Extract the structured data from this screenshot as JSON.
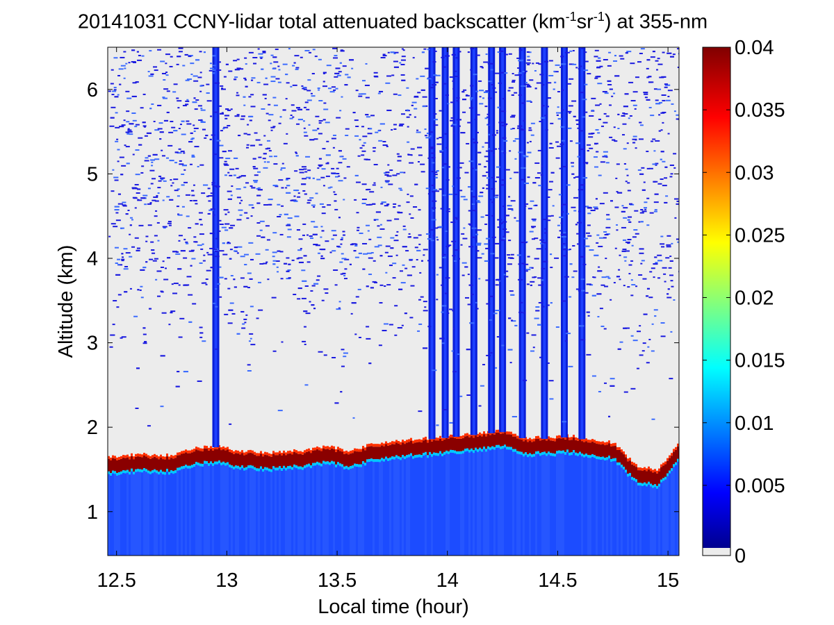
{
  "chart_data": {
    "type": "heatmap",
    "title": {
      "date": "20141031",
      "text_before_units": "CCNY-lidar total attenuated backscatter (km",
      "exp1": "-1",
      "mid": "sr",
      "exp2": "-1",
      "text_after_units": ") at 355-nm"
    },
    "xlabel": "Local time (hour)",
    "ylabel": "Altitude (km)",
    "xlim": [
      12.46,
      15.05
    ],
    "ylim": [
      0.48,
      6.5
    ],
    "xticks": [
      12.5,
      13,
      13.5,
      14,
      14.5,
      15
    ],
    "xtick_labels": [
      "12.5",
      "13",
      "13.5",
      "14",
      "14.5",
      "15"
    ],
    "yticks": [
      1,
      2,
      3,
      4,
      5,
      6
    ],
    "ytick_labels": [
      "1",
      "2",
      "3",
      "4",
      "5",
      "6"
    ],
    "colorbar": {
      "range": [
        0,
        0.04
      ],
      "ticks": [
        0,
        0.005,
        0.01,
        0.015,
        0.02,
        0.025,
        0.03,
        0.035,
        0.04
      ],
      "tick_labels": [
        "0",
        "0.005",
        "0.01",
        "0.015",
        "0.02",
        "0.025",
        "0.03",
        "0.035",
        "0.04"
      ],
      "colormap": "jet",
      "underflow_color": "#ececec"
    },
    "features": {
      "boundary_layer_top_km": [
        [
          12.46,
          1.55
        ],
        [
          12.6,
          1.58
        ],
        [
          12.75,
          1.57
        ],
        [
          12.85,
          1.65
        ],
        [
          12.95,
          1.68
        ],
        [
          13.05,
          1.62
        ],
        [
          13.2,
          1.6
        ],
        [
          13.35,
          1.63
        ],
        [
          13.45,
          1.68
        ],
        [
          13.55,
          1.62
        ],
        [
          13.65,
          1.7
        ],
        [
          13.8,
          1.75
        ],
        [
          13.95,
          1.78
        ],
        [
          14.1,
          1.82
        ],
        [
          14.25,
          1.86
        ],
        [
          14.35,
          1.78
        ],
        [
          14.45,
          1.78
        ],
        [
          14.55,
          1.8
        ],
        [
          14.65,
          1.76
        ],
        [
          14.75,
          1.72
        ],
        [
          14.85,
          1.45
        ],
        [
          14.95,
          1.4
        ],
        [
          15.05,
          1.72
        ]
      ],
      "plumes": [
        {
          "t": 12.95,
          "top_km": 6.5
        },
        {
          "t": 13.93,
          "top_km": 6.5
        },
        {
          "t": 13.99,
          "top_km": 6.5
        },
        {
          "t": 14.04,
          "top_km": 6.5
        },
        {
          "t": 14.12,
          "top_km": 6.5
        },
        {
          "t": 14.2,
          "top_km": 6.5
        },
        {
          "t": 14.25,
          "top_km": 6.5
        },
        {
          "t": 14.34,
          "top_km": 6.5
        },
        {
          "t": 14.44,
          "top_km": 6.5
        },
        {
          "t": 14.53,
          "top_km": 6.5
        },
        {
          "t": 14.61,
          "top_km": 6.5
        }
      ]
    }
  }
}
